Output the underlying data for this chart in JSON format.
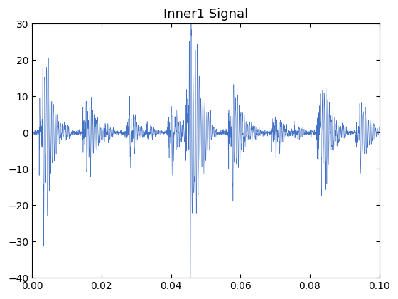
{
  "title": "Inner1 Signal",
  "xlim": [
    0,
    0.1
  ],
  "ylim": [
    -40,
    30
  ],
  "yticks": [
    -40,
    -30,
    -20,
    -10,
    0,
    10,
    20,
    30
  ],
  "xticks": [
    0,
    0.02,
    0.04,
    0.06,
    0.08,
    0.1
  ],
  "line_color": "#4472c4",
  "line_width": 0.4,
  "fs": 25600,
  "duration": 0.1,
  "noise_std": 0.35,
  "seed": 7,
  "background_color": "#ffffff",
  "title_fontsize": 13,
  "impulse_period": 0.01235,
  "burst_decay": 350,
  "burst_freq": 2500,
  "burst_duration": 0.006,
  "impulse_amps": [
    -28.0,
    12.0,
    5.0,
    5.5,
    -31.0,
    -14.0,
    3.0,
    10.5,
    3.5
  ],
  "impulse_times": [
    0.003,
    0.0155,
    0.028,
    0.04,
    0.0455,
    0.058,
    0.07,
    0.083,
    0.095
  ]
}
